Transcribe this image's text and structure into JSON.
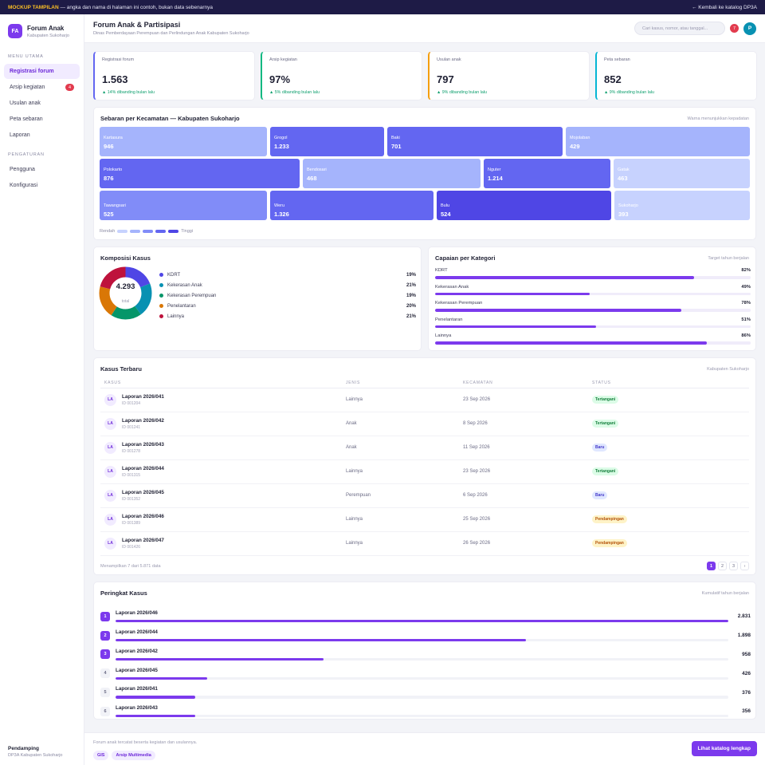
{
  "banner": {
    "tag": "MOCKUP TAMPILAN",
    "text": "— angka dan nama di halaman ini contoh, bukan data sebenarnya",
    "back": "← Kembali ke katalog DP3A"
  },
  "brand": {
    "logo": "FA",
    "name": "Forum Anak",
    "sub": "Kabupaten Sukoharjo"
  },
  "nav_main_title": "MENU UTAMA",
  "nav_main": [
    {
      "label": "Registrasi forum",
      "active": true,
      "count": ""
    },
    {
      "label": "Arsip kegiatan",
      "active": false,
      "count": "4"
    },
    {
      "label": "Usulan anak",
      "active": false,
      "count": ""
    },
    {
      "label": "Peta sebaran",
      "active": false,
      "count": ""
    },
    {
      "label": "Laporan",
      "active": false,
      "count": ""
    }
  ],
  "nav_settings_title": "PENGATURAN",
  "nav_settings": [
    {
      "label": "Pengguna"
    },
    {
      "label": "Konfigurasi"
    }
  ],
  "side_footer": {
    "name": "Pendamping",
    "org": "DP3A Kabupaten Sukoharjo"
  },
  "header": {
    "title": "Forum Anak & Partisipasi",
    "subtitle": "Dinas Pemberdayaan Perempuan dan Perlindungan Anak Kabupaten Sukoharjo",
    "search_placeholder": "Cari kasus, nomor, atau tanggal...",
    "notif": "7",
    "avatar": "P"
  },
  "stats": [
    {
      "label": "Registrasi forum",
      "value": "1.563",
      "delta": "▲ 14% dibanding bulan lalu",
      "color": "#6366f1"
    },
    {
      "label": "Arsip kegiatan",
      "value": "97%",
      "delta": "▲ 5% dibanding bulan lalu",
      "color": "#10b981"
    },
    {
      "label": "Usulan anak",
      "value": "797",
      "delta": "▲ 9% dibanding bulan lalu",
      "color": "#f59e0b"
    },
    {
      "label": "Peta sebaran",
      "value": "852",
      "delta": "▲ 9% dibanding bulan lalu",
      "color": "#06b6d4"
    }
  ],
  "treemap": {
    "title": "Sebaran per Kecamatan — Kabupaten Sukoharjo",
    "note": "Warna menunjukkan kepadatan",
    "rows": [
      [
        {
          "name": "Kartasura",
          "value": "946"
        },
        {
          "name": "Grogol",
          "value": "1.233"
        },
        {
          "name": "Baki",
          "value": "701"
        },
        {
          "name": "Mojolaban",
          "value": "429"
        }
      ],
      [
        {
          "name": "Polokarto",
          "value": "876"
        },
        {
          "name": "Bendosari",
          "value": "468"
        },
        {
          "name": "Nguter",
          "value": "1.214"
        },
        {
          "name": "Gatak",
          "value": "463"
        }
      ],
      [
        {
          "name": "Tawangsari",
          "value": "525"
        },
        {
          "name": "Weru",
          "value": "1.326"
        },
        {
          "name": "Bulu",
          "value": "524"
        },
        {
          "name": "Sukoharjo",
          "value": "393"
        }
      ]
    ],
    "legend_low": "Rendah",
    "legend_high": "Tinggi",
    "scale_colors": [
      "#c7d2fe",
      "#a5b4fc",
      "#818cf8",
      "#6366f1",
      "#4f46e5"
    ]
  },
  "composition": {
    "title": "Komposisi Kasus",
    "total": "4.293",
    "total_label": "total",
    "items": [
      {
        "label": "KDRT",
        "pct": "19%",
        "value": 19,
        "color": "#4f46e5"
      },
      {
        "label": "Kekerasan Anak",
        "pct": "21%",
        "value": 21,
        "color": "#0891b2"
      },
      {
        "label": "Kekerasan Perempuan",
        "pct": "19%",
        "value": 19,
        "color": "#059669"
      },
      {
        "label": "Penelantaran",
        "pct": "20%",
        "value": 20,
        "color": "#d97706"
      },
      {
        "label": "Lainnya",
        "pct": "21%",
        "value": 21,
        "color": "#be123c"
      }
    ]
  },
  "achievement": {
    "title": "Capaian per Kategori",
    "note": "Target tahun berjalan",
    "items": [
      {
        "label": "KDRT",
        "pct": "82%",
        "value": 0.82
      },
      {
        "label": "Kekerasan Anak",
        "pct": "49%",
        "value": 0.49
      },
      {
        "label": "Kekerasan Perempuan",
        "pct": "78%",
        "value": 0.78
      },
      {
        "label": "Penelantaran",
        "pct": "51%",
        "value": 0.51
      },
      {
        "label": "Lainnya",
        "pct": "86%",
        "value": 0.86
      }
    ]
  },
  "cases": {
    "title": "Kasus Terbaru",
    "note": "Kabupaten Sukoharjo",
    "columns": [
      "KASUS",
      "JENIS",
      "KECAMATAN",
      "STATUS"
    ],
    "rows": [
      {
        "avatar": "LA",
        "name": "Laporan 2026/041",
        "id": "ID 001204",
        "type": "Lainnya",
        "date": "23 Sep 2026",
        "status": "Tertangani"
      },
      {
        "avatar": "LA",
        "name": "Laporan 2026/042",
        "id": "ID 001241",
        "type": "Anak",
        "date": "8 Sep 2026",
        "status": "Tertangani"
      },
      {
        "avatar": "LA",
        "name": "Laporan 2026/043",
        "id": "ID 001278",
        "type": "Anak",
        "date": "11 Sep 2026",
        "status": "Baru"
      },
      {
        "avatar": "LA",
        "name": "Laporan 2026/044",
        "id": "ID 001315",
        "type": "Lainnya",
        "date": "23 Sep 2026",
        "status": "Tertangani"
      },
      {
        "avatar": "LA",
        "name": "Laporan 2026/045",
        "id": "ID 001352",
        "type": "Perempuan",
        "date": "6 Sep 2026",
        "status": "Baru"
      },
      {
        "avatar": "LA",
        "name": "Laporan 2026/046",
        "id": "ID 001389",
        "type": "Lainnya",
        "date": "25 Sep 2026",
        "status": "Pendampingan"
      },
      {
        "avatar": "LA",
        "name": "Laporan 2026/047",
        "id": "ID 001426",
        "type": "Lainnya",
        "date": "26 Sep 2026",
        "status": "Pendampingan"
      }
    ],
    "summary": "Menampilkan 7 dari 5.871 data",
    "pages": [
      "1",
      "2",
      "3",
      "›"
    ]
  },
  "ranking": {
    "title": "Peringkat Kasus",
    "note": "Kumulatif tahun berjalan",
    "items": [
      {
        "rank": "1",
        "name": "Laporan 2026/046",
        "value": "2.831",
        "frac": 1.0
      },
      {
        "rank": "2",
        "name": "Laporan 2026/044",
        "value": "1.898",
        "frac": 0.67
      },
      {
        "rank": "3",
        "name": "Laporan 2026/042",
        "value": "958",
        "frac": 0.34
      },
      {
        "rank": "4",
        "name": "Laporan 2026/045",
        "value": "426",
        "frac": 0.15
      },
      {
        "rank": "5",
        "name": "Laporan 2026/041",
        "value": "376",
        "frac": 0.13
      },
      {
        "rank": "6",
        "name": "Laporan 2026/043",
        "value": "356",
        "frac": 0.13
      }
    ]
  },
  "footer": {
    "text": "Forum anak tercatat beserta kegiatan dan usulannya.",
    "chips": [
      "GIS",
      "Arsip Multimedia"
    ],
    "cta": "Lihat katalog lengkap"
  }
}
